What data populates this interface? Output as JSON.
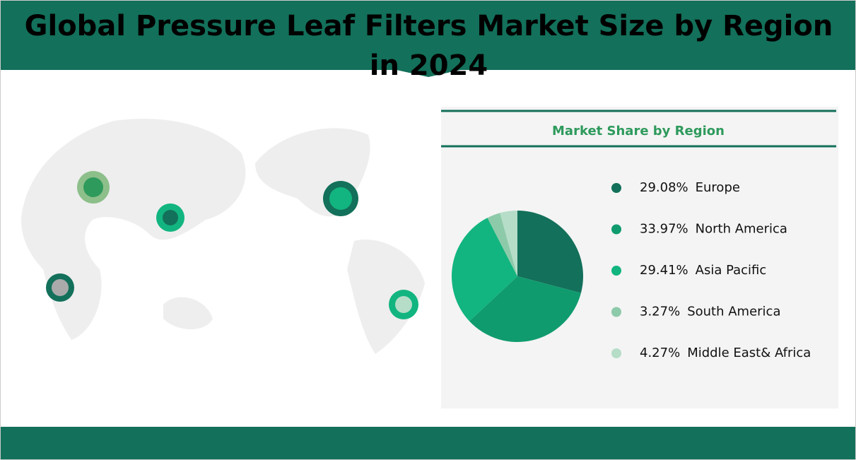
{
  "chart_data": {
    "type": "pie",
    "title": "Global Pressure Leaf Filters Market Size by Region in 2024",
    "subtitle": "Market Share by Region",
    "categories": [
      "Europe",
      "North America",
      "Asia Pacific",
      "South America",
      "Middle East& Africa"
    ],
    "values": [
      29.08,
      33.97,
      29.41,
      3.27,
      4.27
    ],
    "value_labels": [
      "29.08%",
      "33.97%",
      "29.41%",
      "3.27%",
      "4.27%"
    ],
    "colors": [
      "#13705a",
      "#0f9b6e",
      "#12b57f",
      "#8dcaa9",
      "#b5ddc8"
    ]
  }
}
